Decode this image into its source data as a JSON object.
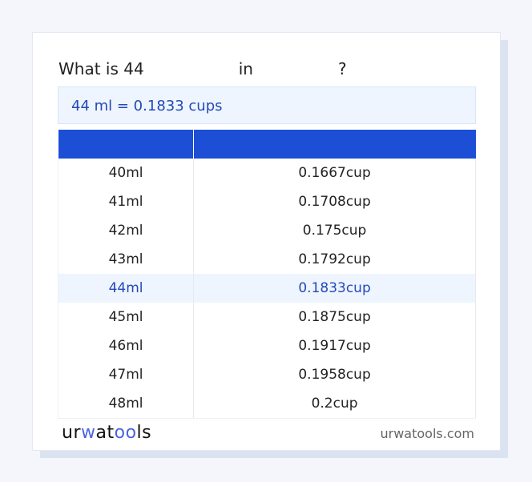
{
  "question": {
    "prefix": "What is 44",
    "middle": "in",
    "suffix": "?"
  },
  "result": "44 ml = 0.1833 cups",
  "table": {
    "headers": [
      "",
      ""
    ],
    "rows": [
      {
        "ml": "40ml",
        "cup": "0.1667cup"
      },
      {
        "ml": "41ml",
        "cup": "0.1708cup"
      },
      {
        "ml": "42ml",
        "cup": "0.175cup"
      },
      {
        "ml": "43ml",
        "cup": "0.1792cup"
      },
      {
        "ml": "44ml",
        "cup": "0.1833cup",
        "highlighted": true
      },
      {
        "ml": "45ml",
        "cup": "0.1875cup"
      },
      {
        "ml": "46ml",
        "cup": "0.1917cup"
      },
      {
        "ml": "47ml",
        "cup": "0.1958cup"
      },
      {
        "ml": "48ml",
        "cup": "0.2cup"
      }
    ]
  },
  "footer": {
    "logo": "urwatools",
    "site": "urwatools.com"
  },
  "colors": {
    "accent": "#1c4fd6",
    "highlight_bg": "#eef5fe",
    "highlight_text": "#2449b8"
  }
}
